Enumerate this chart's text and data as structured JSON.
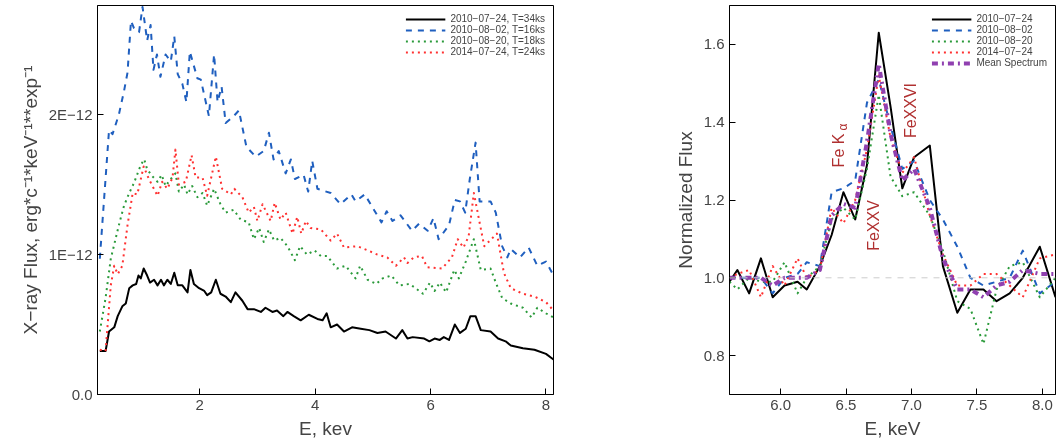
{
  "chart_data": [
    {
      "type": "line",
      "xlabel": "E, kev",
      "ylabel": "X−ray Flux, erg*c⁻¹*keV⁻¹**exp⁻¹",
      "xlim": [
        0.23,
        8.13
      ],
      "ylim": [
        0,
        2.78e-12
      ],
      "xticks": [
        2,
        4,
        6,
        8
      ],
      "yticks": [
        {
          "value": 0,
          "label": "0.0"
        },
        {
          "value": 1e-12,
          "label": "1E−12"
        },
        {
          "value": 2e-12,
          "label": "2E−12"
        }
      ],
      "grid": false,
      "legend": "top right",
      "series": [
        {
          "name": "2010−07−24, T=34ks",
          "color": "#000000",
          "line_style": "solid",
          "x": [
            0.27,
            0.37,
            0.43,
            0.52,
            0.58,
            0.66,
            0.72,
            0.78,
            0.84,
            0.9,
            0.94,
            0.98,
            1.03,
            1.09,
            1.14,
            1.21,
            1.27,
            1.33,
            1.38,
            1.44,
            1.5,
            1.56,
            1.62,
            1.7,
            1.79,
            1.84,
            1.9,
            1.99,
            2.08,
            2.13,
            2.2,
            2.28,
            2.36,
            2.45,
            2.54,
            2.62,
            2.74,
            2.83,
            2.94,
            3.06,
            3.14,
            3.26,
            3.34,
            3.45,
            3.52,
            3.63,
            3.75,
            3.89,
            4.04,
            4.13,
            4.2,
            4.27,
            4.38,
            4.5,
            4.64,
            4.79,
            4.94,
            5.08,
            5.22,
            5.4,
            5.51,
            5.6,
            5.69,
            5.89,
            5.98,
            6.07,
            6.16,
            6.23,
            6.32,
            6.42,
            6.51,
            6.61,
            6.69,
            6.78,
            6.87,
            7.04,
            7.17,
            7.3,
            7.39,
            7.6,
            7.8,
            8.0,
            8.13
          ],
          "values": [
            3.1e-13,
            3.1e-13,
            4.5e-13,
            4.8e-13,
            5.6e-13,
            6.3e-13,
            6.5e-13,
            7.6e-13,
            7.8e-13,
            7.9e-13,
            8.5e-13,
            8.3e-13,
            9e-13,
            8.5e-13,
            8e-13,
            8.2e-13,
            7.8e-13,
            8.2e-13,
            7.8e-13,
            8.2e-13,
            7.9e-13,
            8.7e-13,
            7.8e-13,
            7.8e-13,
            7.3e-13,
            8.9e-13,
            7.9e-13,
            7.6e-13,
            7.4e-13,
            7.1e-13,
            7.3e-13,
            8.2e-13,
            7.2e-13,
            7e-13,
            6.6e-13,
            7.3e-13,
            6.7e-13,
            6.1e-13,
            6.1e-13,
            5.9e-13,
            6.2e-13,
            5.9e-13,
            6e-13,
            5.6e-13,
            5.9e-13,
            5.6e-13,
            5.3e-13,
            5.7e-13,
            5.4e-13,
            5.3e-13,
            5.8e-13,
            4.8e-13,
            5e-13,
            4.5e-13,
            4.8e-13,
            4.7e-13,
            4.6e-13,
            4.4e-13,
            4.5e-13,
            4e-13,
            4.6e-13,
            4e-13,
            4.1e-13,
            4e-13,
            3.8e-13,
            4e-13,
            3.9e-13,
            4.1e-13,
            3.9e-13,
            5e-13,
            4.4e-13,
            4.7e-13,
            5.6e-13,
            5.6e-13,
            4.6e-13,
            4.5e-13,
            4e-13,
            3.8e-13,
            3.5e-13,
            3.3e-13,
            3.2e-13,
            2.9e-13,
            2.5e-13
          ]
        },
        {
          "name": "2010−08−02, T=16ks",
          "color": "#1f5fbf",
          "line_style": "dashed",
          "x": [
            0.27,
            0.43,
            0.49,
            0.6,
            0.69,
            0.75,
            0.81,
            0.86,
            0.95,
            1.01,
            1.09,
            1.15,
            1.2,
            1.26,
            1.32,
            1.41,
            1.5,
            1.56,
            1.62,
            1.7,
            1.77,
            1.83,
            1.96,
            2.02,
            2.16,
            2.25,
            2.31,
            2.38,
            2.45,
            2.59,
            2.68,
            2.81,
            2.97,
            3.11,
            3.2,
            3.28,
            3.37,
            3.49,
            3.58,
            3.65,
            3.8,
            3.88,
            3.95,
            4.04,
            4.27,
            4.44,
            4.63,
            4.7,
            4.86,
            4.99,
            5.15,
            5.24,
            5.34,
            5.48,
            5.68,
            5.8,
            5.95,
            6.05,
            6.14,
            6.32,
            6.42,
            6.51,
            6.6,
            6.68,
            6.78,
            6.85,
            7.04,
            7.13,
            7.24,
            7.33,
            7.39,
            7.55,
            7.7,
            7.85,
            8.0,
            8.13
          ],
          "values": [
            9.7e-13,
            1.89e-12,
            1.86e-12,
            2e-12,
            2.17e-12,
            2.3e-12,
            2.67e-12,
            2.62e-12,
            2.59e-12,
            2.77e-12,
            2.53e-12,
            2.64e-12,
            2.32e-12,
            2.43e-12,
            2.27e-12,
            2.43e-12,
            2.38e-12,
            2.56e-12,
            2.29e-12,
            2.22e-12,
            2.09e-12,
            2.45e-12,
            2.26e-12,
            2.25e-12,
            1.99e-12,
            2.43e-12,
            2.09e-12,
            2.2e-12,
            1.94e-12,
            1.99e-12,
            2.03e-12,
            1.77e-12,
            1.7e-12,
            1.74e-12,
            1.87e-12,
            1.68e-12,
            1.74e-12,
            1.58e-12,
            1.68e-12,
            1.54e-12,
            1.57e-12,
            1.45e-12,
            1.67e-12,
            1.47e-12,
            1.44e-12,
            1.36e-12,
            1.43e-12,
            1.38e-12,
            1.43e-12,
            1.34e-12,
            1.23e-12,
            1.31e-12,
            1.24e-12,
            1.28e-12,
            1.17e-12,
            1.22e-12,
            1.17e-12,
            1.26e-12,
            1.11e-12,
            1.21e-12,
            1.39e-12,
            1.38e-12,
            1.3e-12,
            1.54e-12,
            1.8e-12,
            1.38e-12,
            1.38e-12,
            1.3e-12,
            1.06e-12,
            9.8e-13,
            1.04e-12,
            9.8e-13,
            1.05e-12,
            9.2e-13,
            9.5e-13,
            8.5e-13
          ]
        },
        {
          "name": "2010−08−20, T=18ks",
          "color": "#2a9a3a",
          "line_style": "dotted",
          "x": [
            0.27,
            0.37,
            0.46,
            0.6,
            0.69,
            0.78,
            0.86,
            0.98,
            1.04,
            1.09,
            1.18,
            1.27,
            1.34,
            1.41,
            1.5,
            1.58,
            1.64,
            1.73,
            1.79,
            1.87,
            1.96,
            2.05,
            2.13,
            2.25,
            2.36,
            2.45,
            2.59,
            2.71,
            2.85,
            2.94,
            3.03,
            3.11,
            3.2,
            3.29,
            3.4,
            3.52,
            3.65,
            3.74,
            3.86,
            3.99,
            4.1,
            4.21,
            4.38,
            4.53,
            4.7,
            4.78,
            4.91,
            5.06,
            5.17,
            5.32,
            5.46,
            5.64,
            5.87,
            5.99,
            6.07,
            6.16,
            6.27,
            6.41,
            6.49,
            6.61,
            6.75,
            6.87,
            7.04,
            7.13,
            7.24,
            7.39,
            7.6,
            7.75,
            7.85,
            8.0,
            8.13
          ],
          "values": [
            4.5e-13,
            6.9e-13,
            9.7e-13,
            1.21e-12,
            1.35e-12,
            1.44e-12,
            1.51e-12,
            1.64e-12,
            1.68e-12,
            1.61e-12,
            1.56e-12,
            1.52e-12,
            1.57e-12,
            1.49e-12,
            1.54e-12,
            1.58e-12,
            1.45e-12,
            1.5e-12,
            1.43e-12,
            1.49e-12,
            1.41e-12,
            1.44e-12,
            1.35e-12,
            1.47e-12,
            1.36e-12,
            1.3e-12,
            1.32e-12,
            1.25e-12,
            1.23e-12,
            1.11e-12,
            1.19e-12,
            1.09e-12,
            1.18e-12,
            1.1e-12,
            1.12e-12,
            1.06e-12,
            9.6e-13,
            1.06e-12,
            1e-12,
            1.03e-12,
            9.9e-13,
            9.9e-13,
            9e-13,
            9.2e-13,
            8.3e-13,
            9.2e-13,
            8.2e-13,
            7.9e-13,
            8.3e-13,
            8.5e-13,
            7.8e-13,
            7.9e-13,
            7.2e-13,
            8e-13,
            7.4e-13,
            8e-13,
            7.3e-13,
            8.9e-13,
            8.3e-13,
            9.5e-13,
            1.11e-12,
            8.9e-13,
            9e-13,
            8e-13,
            6.9e-13,
            6.5e-13,
            6.2e-13,
            5.5e-13,
            6.2e-13,
            5.8e-13,
            5.5e-13
          ]
        },
        {
          "name": "2014−07−24, T=24ks",
          "color": "#ff3030",
          "line_style": "dotted",
          "x": [
            0.27,
            0.37,
            0.46,
            0.52,
            0.58,
            0.66,
            0.75,
            0.84,
            0.92,
            1.03,
            1.12,
            1.27,
            1.35,
            1.44,
            1.53,
            1.58,
            1.64,
            1.76,
            1.86,
            1.93,
            2.05,
            2.13,
            2.28,
            2.39,
            2.54,
            2.6,
            2.74,
            2.85,
            2.94,
            3.0,
            3.09,
            3.23,
            3.3,
            3.4,
            3.49,
            3.61,
            3.69,
            3.76,
            3.84,
            3.92,
            4.1,
            4.27,
            4.38,
            4.5,
            4.73,
            4.91,
            5.08,
            5.25,
            5.4,
            5.54,
            5.6,
            5.71,
            5.85,
            5.94,
            6.2,
            6.37,
            6.47,
            6.57,
            6.66,
            6.75,
            6.84,
            6.93,
            7.15,
            7.27,
            7.39,
            7.6,
            7.8,
            8.0,
            8.13
          ],
          "values": [
            3.2e-13,
            3.1e-13,
            7.8e-13,
            9.2e-13,
            8.6e-13,
            9.2e-13,
            1.21e-12,
            1.44e-12,
            1.43e-12,
            1.63e-12,
            1.54e-12,
            1.42e-12,
            1.52e-12,
            1.47e-12,
            1.55e-12,
            1.75e-12,
            1.5e-12,
            1.52e-12,
            1.71e-12,
            1.55e-12,
            1.55e-12,
            1.42e-12,
            1.7e-12,
            1.47e-12,
            1.43e-12,
            1.47e-12,
            1.41e-12,
            1.3e-12,
            1.34e-12,
            1.24e-12,
            1.36e-12,
            1.24e-12,
            1.37e-12,
            1.25e-12,
            1.3e-12,
            1.15e-12,
            1.27e-12,
            1.15e-12,
            1.24e-12,
            1.19e-12,
            1.18e-12,
            1.1e-12,
            1.15e-12,
            1.05e-12,
            1.06e-12,
            1.03e-12,
            1e-12,
            9.8e-13,
            9.2e-13,
            9.8e-13,
            9.4e-13,
            9.8e-13,
            9.9e-13,
            9.1e-13,
            9e-13,
            9.8e-13,
            1.11e-12,
            1.05e-12,
            1.13e-12,
            1.44e-12,
            1.25e-12,
            1.06e-12,
            1.15e-12,
            8.7e-13,
            7.6e-13,
            7.2e-13,
            7e-13,
            6.6e-13,
            6e-13
          ]
        }
      ]
    },
    {
      "type": "line",
      "xlabel": "E, keV",
      "ylabel": "Normalized Flux",
      "xlim": [
        5.61,
        8.1
      ],
      "ylim": [
        0.7,
        1.7
      ],
      "xticks": [
        {
          "value": 6,
          "label": "6.0"
        },
        {
          "value": 6.5,
          "label": "6.5"
        },
        {
          "value": 7,
          "label": "7.0"
        },
        {
          "value": 7.5,
          "label": "7.5"
        },
        {
          "value": 8,
          "label": "8.0"
        }
      ],
      "yticks": [
        {
          "value": 0.8,
          "label": "0.8"
        },
        {
          "value": 1,
          "label": "1.0"
        },
        {
          "value": 1.2,
          "label": "1.2"
        },
        {
          "value": 1.4,
          "label": "1.4"
        },
        {
          "value": 1.6,
          "label": "1.6"
        }
      ],
      "grid": false,
      "legend": "top right",
      "x": [
        5.61,
        5.67,
        5.76,
        5.85,
        5.94,
        6.03,
        6.13,
        6.2,
        6.3,
        6.39,
        6.48,
        6.57,
        6.66,
        6.75,
        6.84,
        6.93,
        7.02,
        7.14,
        7.24,
        7.35,
        7.45,
        7.55,
        7.65,
        7.75,
        7.85,
        7.98,
        8.1
      ],
      "ref_lines": [
        {
          "axis": "y",
          "value": 1.0,
          "label": null,
          "color": "#cccccc",
          "line_style": "dashed"
        }
      ],
      "annotations": [
        "Fe K$_{α}$",
        "FeXXV",
        "FeXXVI"
      ],
      "series": [
        {
          "name": "2010−07−24",
          "color": "#000000",
          "line_style": "solid",
          "values": [
            0.99,
            1.02,
            0.96,
            1.05,
            0.95,
            0.98,
            0.99,
            0.97,
            1.03,
            1.11,
            1.22,
            1.15,
            1.29,
            1.63,
            1.44,
            1.23,
            1.31,
            1.34,
            1.03,
            0.91,
            0.97,
            0.97,
            0.94,
            0.96,
            1.0,
            1.08,
            0.95
          ]
        },
        {
          "name": "2010−08−02",
          "color": "#1f5fbf",
          "line_style": "dashed",
          "values": [
            1.0,
            1.0,
            1.0,
            1.0,
            0.96,
            1.0,
            1.01,
            1.04,
            1.03,
            1.22,
            1.23,
            1.25,
            1.45,
            1.51,
            1.39,
            1.28,
            1.3,
            1.2,
            1.15,
            1.08,
            1.0,
            0.98,
            0.99,
            1.0,
            1.07,
            0.96,
            0.99
          ]
        },
        {
          "name": "2010−08−20",
          "color": "#2a9a3a",
          "line_style": "dotted",
          "values": [
            0.99,
            0.97,
            1.0,
            0.99,
            0.99,
            1.04,
            0.96,
            1.0,
            1.03,
            1.15,
            1.18,
            1.15,
            1.28,
            1.47,
            1.26,
            1.21,
            1.22,
            1.16,
            1.07,
            0.94,
            0.92,
            0.83,
            0.97,
            1.03,
            1.04,
            0.95,
            1.0
          ]
        },
        {
          "name": "2014−07−24",
          "color": "#ff3030",
          "line_style": "dotted",
          "values": [
            1.0,
            1.01,
            1.02,
            0.95,
            1.03,
            0.98,
            1.05,
            1.0,
            1.02,
            1.18,
            1.14,
            1.2,
            1.33,
            1.52,
            1.36,
            1.27,
            1.31,
            1.16,
            1.06,
            0.98,
            0.98,
            1.01,
            1.01,
            0.98,
            0.95,
            1.05,
            1.06
          ]
        },
        {
          "name": "Mean Spectrum",
          "color": "#9040b0",
          "line_style": "dashdot",
          "values": [
            1.0,
            1.0,
            1.0,
            1.0,
            0.98,
            1.0,
            1.0,
            1.0,
            1.02,
            1.16,
            1.19,
            1.18,
            1.35,
            1.55,
            1.37,
            1.25,
            1.28,
            1.18,
            1.05,
            0.97,
            0.97,
            0.95,
            0.98,
            0.99,
            1.02,
            1.01,
            1.01
          ]
        }
      ]
    }
  ]
}
